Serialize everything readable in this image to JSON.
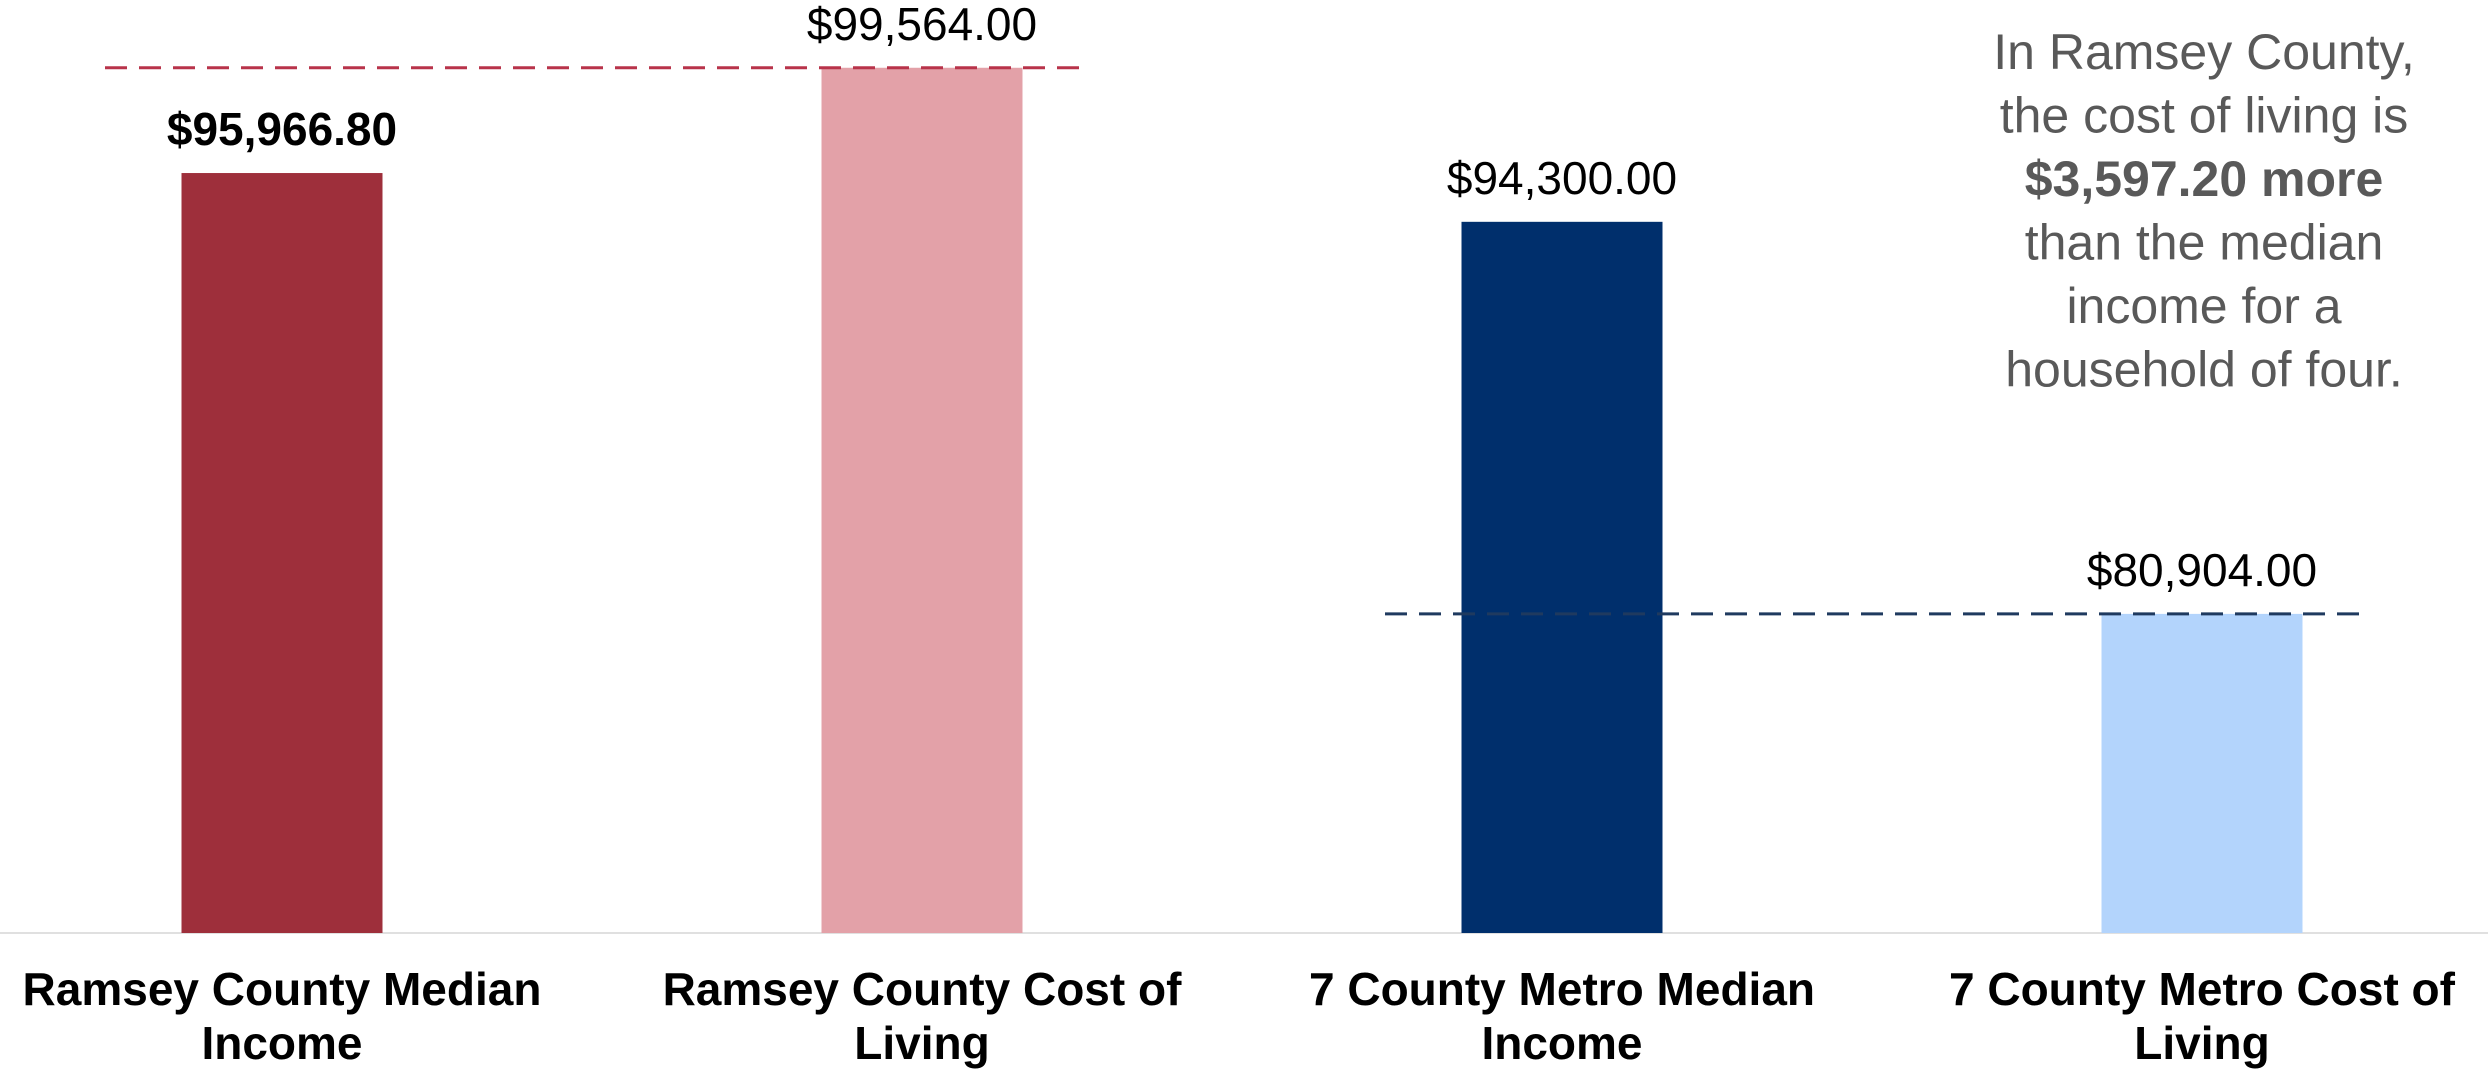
{
  "chart_data": {
    "type": "bar",
    "categories": [
      "Ramsey County Median Income",
      "Ramsey County Cost of Living",
      "7 County Metro Median Income",
      "7 County Metro Cost of Living"
    ],
    "values": [
      95966.8,
      99564,
      94300,
      80904
    ],
    "value_labels": [
      "$95,966.80",
      "$99,564.00",
      "$94,300.00",
      "$80,904.00"
    ],
    "value_label_bold": [
      true,
      false,
      false,
      false
    ],
    "colors": [
      "#9e2f3b",
      "#e3a1a8",
      "#002f6c",
      "#b3d4fc"
    ],
    "reference_lines": [
      {
        "from": 0,
        "to": 1,
        "value_index": 1,
        "color": "#b8334a"
      },
      {
        "from": 2,
        "to": 3,
        "value_index": 3,
        "color": "#1f3a5f"
      }
    ],
    "ylim": [
      70000,
      100000
    ],
    "annotation": [
      {
        "text": "In Ramsey County,",
        "bold": false
      },
      {
        "text": "the cost of living is",
        "bold": false
      },
      {
        "text": "$3,597.20 more",
        "bold": true
      },
      {
        "text": "than the median",
        "bold": false
      },
      {
        "text": "income for a",
        "bold": false
      },
      {
        "text": "household of four.",
        "bold": false
      }
    ]
  }
}
